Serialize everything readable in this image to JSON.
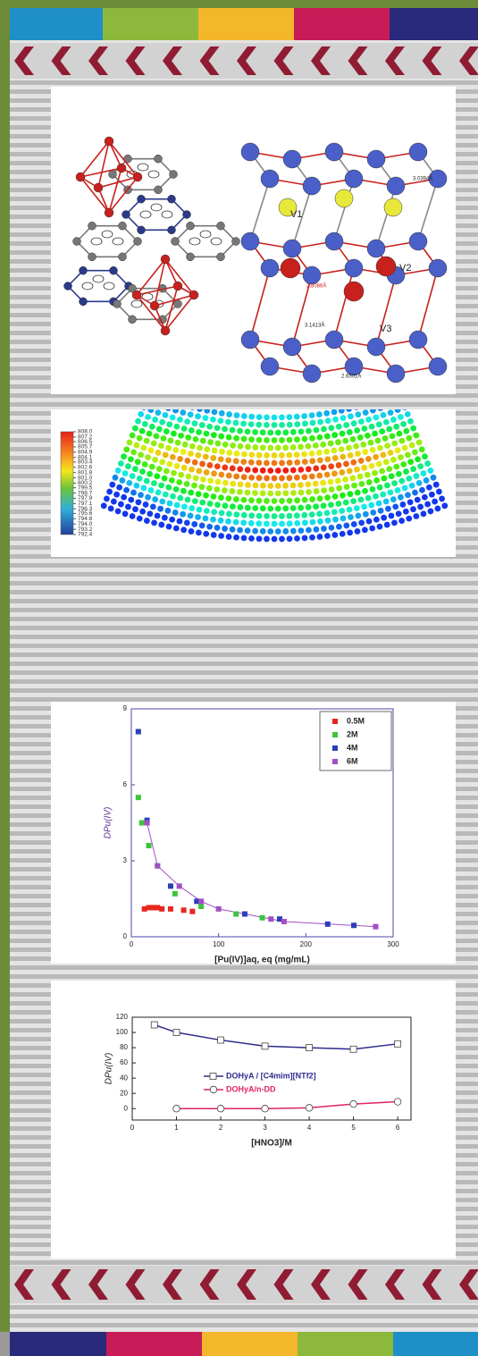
{
  "structure": {
    "sites": [
      "V1",
      "V2",
      "V3"
    ],
    "distances": [
      "3.0394Å",
      "2.8086Å",
      "3.1413Å",
      "2.6501Å"
    ]
  },
  "chart_data": [
    {
      "type": "colorbar",
      "ylim": [
        792.4,
        808.0
      ],
      "yticks": [
        {
          "value": 808.0,
          "label": "808.0"
        },
        {
          "value": 807.2,
          "label": "807.2"
        },
        {
          "value": 806.5,
          "label": "806.5"
        },
        {
          "value": 805.7,
          "label": "805.7"
        },
        {
          "value": 804.9,
          "label": "804.9"
        },
        {
          "value": 804.1,
          "label": "804.1"
        },
        {
          "value": 803.4,
          "label": "803.4"
        },
        {
          "value": 802.6,
          "label": "802.6"
        },
        {
          "value": 801.8,
          "label": "801.8"
        },
        {
          "value": 801.0,
          "label": "801.0"
        },
        {
          "value": 800.2,
          "label": "800.2"
        },
        {
          "value": 799.5,
          "label": "799.5"
        },
        {
          "value": 798.7,
          "label": "798.7"
        },
        {
          "value": 797.9,
          "label": "797.9"
        },
        {
          "value": 797.1,
          "label": "797.1"
        },
        {
          "value": 796.3,
          "label": "796.3"
        },
        {
          "value": 795.6,
          "label": "795.6"
        },
        {
          "value": 794.8,
          "label": "794.8"
        },
        {
          "value": 794.0,
          "label": "794.0"
        },
        {
          "value": 793.2,
          "label": "793.2"
        },
        {
          "value": 792.4,
          "label": "792.4"
        }
      ]
    },
    {
      "type": "scatter",
      "x_label": "[Pu(IV)]aq, eq (mg/mL)",
      "y_label": "DPu(IV)",
      "xlim": [
        0,
        300
      ],
      "xticks": [
        0,
        100,
        200,
        300
      ],
      "ylim": [
        0,
        9
      ],
      "yticks": [
        0,
        3,
        6,
        9
      ],
      "legend": "upper right",
      "series": [
        {
          "name": "0.5M",
          "color": "#e8271f",
          "x": [
            15,
            20,
            25,
            30,
            35,
            45,
            60,
            70
          ],
          "values": [
            1.1,
            1.15,
            1.15,
            1.15,
            1.1,
            1.1,
            1.05,
            1.0
          ]
        },
        {
          "name": "2M",
          "color": "#3cc43c",
          "x": [
            8,
            12,
            20,
            30,
            50,
            80,
            120,
            150
          ],
          "values": [
            5.5,
            4.5,
            3.6,
            2.8,
            1.7,
            1.2,
            0.9,
            0.75
          ]
        },
        {
          "name": "4M",
          "color": "#2b3fb8",
          "x": [
            8,
            18,
            45,
            75,
            130,
            170,
            225,
            255
          ],
          "values": [
            8.1,
            4.6,
            2.0,
            1.4,
            0.9,
            0.7,
            0.5,
            0.45
          ]
        },
        {
          "name": "6M",
          "color": "#a24fc4",
          "x": [
            18,
            30,
            55,
            80,
            100,
            160,
            175,
            280
          ],
          "values": [
            4.5,
            2.8,
            2.0,
            1.4,
            1.1,
            0.7,
            0.6,
            0.4
          ]
        }
      ]
    },
    {
      "type": "line",
      "x_label": "[HNO3]/M",
      "y_label": "DPu(IV)",
      "xlim": [
        0,
        6.3
      ],
      "xticks": [
        0,
        1,
        2,
        3,
        4,
        5,
        6
      ],
      "ylim": [
        -15,
        120
      ],
      "yticks": [
        0,
        20,
        40,
        60,
        80,
        100,
        120
      ],
      "legend": "center",
      "series": [
        {
          "name": "DOHyA / [C4mim][NTf2]",
          "color": "#2e2a8c",
          "marker": "square",
          "x": [
            0.5,
            1,
            2,
            3,
            4,
            5,
            6
          ],
          "values": [
            110,
            100,
            90,
            82,
            80,
            78,
            85
          ]
        },
        {
          "name": "DOHyA/n-DD",
          "color": "#e0245e",
          "marker": "circle",
          "x": [
            1,
            2,
            3,
            4,
            5,
            6
          ],
          "values": [
            0,
            0,
            0,
            1,
            6,
            9
          ]
        }
      ]
    }
  ]
}
